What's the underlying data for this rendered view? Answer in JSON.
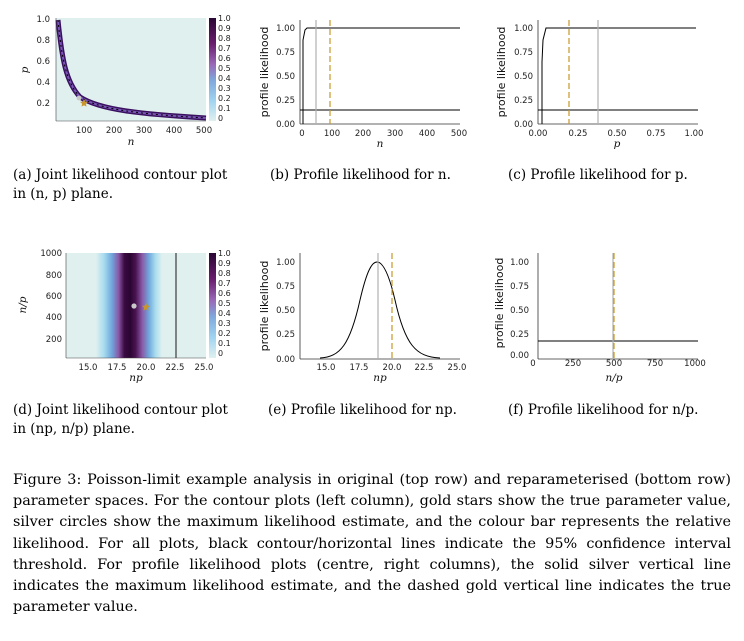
{
  "colors": {
    "panel_bg": "#e0f0ef",
    "true_value": "#c8962a",
    "mle": "#b0b0b0",
    "threshold": "#000000"
  },
  "colorbar_ticks": [
    "1.0",
    "0.9",
    "0.8",
    "0.7",
    "0.6",
    "0.5",
    "0.4",
    "0.3",
    "0.2",
    "0.1",
    "0"
  ],
  "panels": {
    "a": {
      "caption": "(a) Joint likelihood contour plot in (n, p) plane.",
      "xlabel": "n",
      "ylabel": "p",
      "xticks": [
        "100",
        "200",
        "300",
        "400",
        "500"
      ],
      "yticks": [
        "1.0",
        "0.8",
        "0.6",
        "0.4",
        "0.2"
      ]
    },
    "b": {
      "caption": "(b) Profile likelihood for n.",
      "xlabel": "n",
      "ylabel": "profile likelihood",
      "xticks": [
        "0",
        "100",
        "200",
        "300",
        "400",
        "500"
      ],
      "yticks": [
        "1.00",
        "0.75",
        "0.50",
        "0.25",
        "0.00"
      ]
    },
    "c": {
      "caption": "(c) Profile likelihood for p.",
      "xlabel": "p",
      "ylabel": "profile likelihood",
      "xticks": [
        "0.00",
        "0.25",
        "0.50",
        "0.75",
        "1.00"
      ],
      "yticks": [
        "1.00",
        "0.75",
        "0.50",
        "0.25",
        "0.00"
      ]
    },
    "d": {
      "caption": "(d) Joint likelihood contour plot in (np, n/p) plane.",
      "xlabel": "np",
      "ylabel": "n/p",
      "xticks": [
        "15.0",
        "17.5",
        "20.0",
        "22.5",
        "25.0"
      ],
      "yticks": [
        "1000",
        "800",
        "600",
        "400",
        "200"
      ]
    },
    "e": {
      "caption": "(e) Profile likelihood for np.",
      "xlabel": "np",
      "ylabel": "profile likelihood",
      "xticks": [
        "15.0",
        "17.5",
        "20.0",
        "22.5",
        "25.0"
      ],
      "yticks": [
        "1.00",
        "0.75",
        "0.50",
        "0.25",
        "0.00"
      ]
    },
    "f": {
      "caption": "(f) Profile likelihood for n/p.",
      "xlabel": "n/p",
      "ylabel": "profile likelihood",
      "xticks": [
        "0",
        "250",
        "500",
        "750",
        "1000"
      ],
      "yticks": [
        "1.00",
        "0.75",
        "0.50",
        "0.25",
        "0.00"
      ]
    }
  },
  "figure_caption": "Figure 3: Poisson-limit example analysis in original (top row) and reparameterised (bottom row) parameter spaces. For the contour plots (left column), gold stars show the true parameter value, silver circles show the maximum likelihood estimate, and the colour bar represents the relative likelihood. For all plots, black contour/horizontal lines indicate the 95% confidence interval threshold. For profile likelihood plots (centre, right columns), the solid silver vertical line indicates the maximum likelihood estimate, and the dashed gold vertical line indicates the true parameter value."
}
